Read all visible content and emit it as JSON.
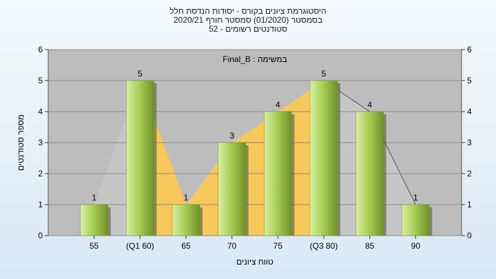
{
  "header": {
    "title_line1": "היסטוגרמת ציונים בקורס - יסודות הנדסת חלל",
    "title_line2": "בסמסטר  (01/2020)  סמסטר חורף  2020/21",
    "title_line3": "סטודנטים רשומים - 52"
  },
  "chart_data": {
    "type": "bar",
    "subtitle": "Final_B : במשימה",
    "xlabel": "טווח ציונים",
    "ylabel": "מספר סטודנטים",
    "categories": [
      "55",
      "(Q1 60)",
      "65",
      "70",
      "75",
      "(Q3 80)",
      "85",
      "90"
    ],
    "values": [
      1,
      5,
      1,
      3,
      4,
      5,
      4,
      1
    ],
    "ylim": [
      0,
      6
    ],
    "yticks": [
      "0",
      "1",
      "2",
      "3",
      "4",
      "5",
      "6"
    ],
    "grid": true,
    "colors": {
      "bar": "#8fb83c",
      "bar_highlight": "#d9f0a0",
      "area_quartile": "#f7c85a",
      "area_shadow": "#c6c6c6",
      "plot_background": "#bdbdbd"
    }
  }
}
